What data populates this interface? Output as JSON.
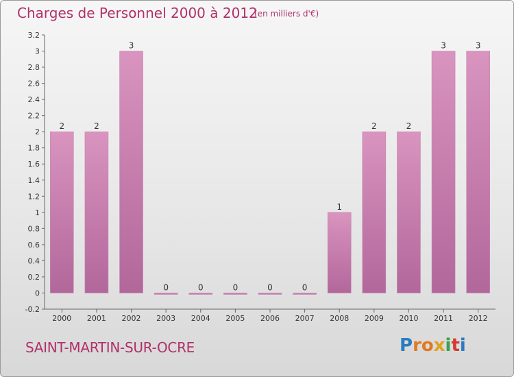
{
  "header": {
    "title": "Charges de Personnel 2000 à 2012",
    "subtitle": "(en milliers d'€)"
  },
  "footer": {
    "commune": "SAINT-MARTIN-SUR-OCRE",
    "logo_letters": [
      "P",
      "r",
      "o",
      "x",
      "i",
      "t",
      "i"
    ],
    "logo_colors": [
      "#2b7bc0",
      "#e07a1f",
      "#e07a1f",
      "#e0a21f",
      "#3aa14a",
      "#d6392f",
      "#2b7bc0"
    ]
  },
  "chart_data": {
    "type": "bar",
    "categories": [
      "2000",
      "2001",
      "2002",
      "2003",
      "2004",
      "2005",
      "2006",
      "2007",
      "2008",
      "2009",
      "2010",
      "2011",
      "2012"
    ],
    "values": [
      2,
      2,
      3,
      0,
      0,
      0,
      0,
      0,
      1,
      2,
      2,
      3,
      3
    ],
    "data_labels": [
      "2",
      "2",
      "3",
      "0",
      "0",
      "0",
      "0",
      "0",
      "1",
      "2",
      "2",
      "3",
      "3"
    ],
    "yticks": [
      -0.2,
      0,
      0.2,
      0.4,
      0.6,
      0.8,
      1,
      1.2,
      1.4,
      1.6,
      1.8,
      2,
      2.2,
      2.4,
      2.6,
      2.8,
      3,
      3.2
    ],
    "ytick_labels": [
      "-0.2",
      "0",
      "0.2",
      "0.4",
      "0.6",
      "0.8",
      "1",
      "1.2",
      "1.4",
      "1.6",
      "1.8",
      "2",
      "2.2",
      "2.4",
      "2.6",
      "2.8",
      "3",
      "3.2"
    ],
    "ylim": [
      -0.2,
      3.2
    ],
    "grid": false,
    "bar_color": "#d994bf",
    "bar_color_dark": "#b2679b"
  }
}
